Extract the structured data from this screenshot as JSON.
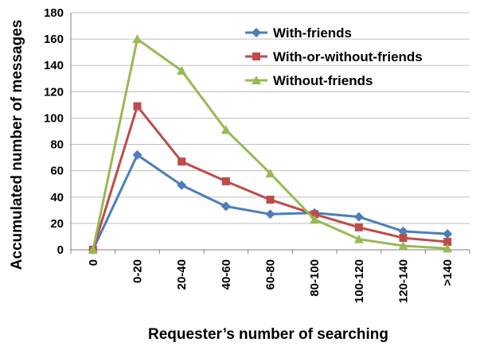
{
  "chart_data": {
    "type": "line",
    "title": "",
    "xlabel": "Requester’s number of searching",
    "ylabel": "Accumulated number of messages",
    "categories": [
      "0",
      "0-20",
      "20-40",
      "40-60",
      "60-80",
      "80-100",
      "100-120",
      "120-140",
      ">140"
    ],
    "ylim": [
      0,
      180
    ],
    "yticks": [
      0,
      20,
      40,
      60,
      80,
      100,
      120,
      140,
      160,
      180
    ],
    "grid": "horizontal",
    "legend": "top-right",
    "series": [
      {
        "name": "With-friends",
        "color": "#4a7ebb",
        "marker": "diamond",
        "values": [
          0,
          72,
          49,
          33,
          27,
          28,
          25,
          14,
          12
        ]
      },
      {
        "name": "With-or-without-friends",
        "color": "#be4b48",
        "marker": "square",
        "values": [
          0,
          109,
          67,
          52,
          38,
          27,
          17,
          9,
          6
        ]
      },
      {
        "name": "Without-friends",
        "color": "#98b954",
        "marker": "triangle",
        "values": [
          0,
          160,
          136,
          91,
          58,
          23,
          8,
          3,
          1
        ]
      }
    ]
  }
}
